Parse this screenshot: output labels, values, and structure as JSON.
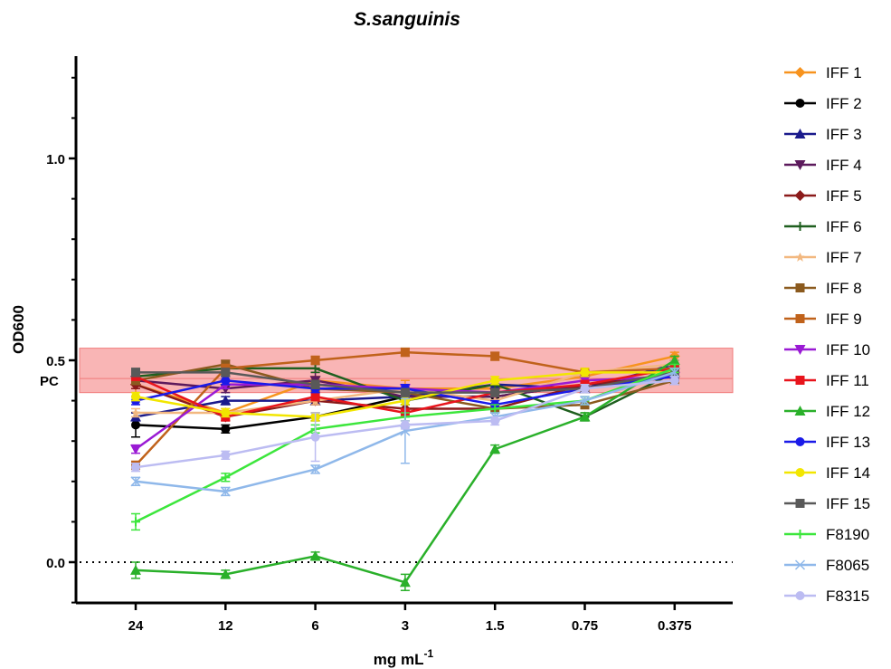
{
  "chart_data": {
    "type": "line",
    "title": "S.sanguinis",
    "xlabel": "mg mL",
    "xlabel_sup": "-1",
    "ylabel": "OD600",
    "ylim": [
      -0.1,
      1.25
    ],
    "yticks": [
      0.0,
      0.5,
      1.0
    ],
    "ytick_labels": [
      "0.0",
      "0.5",
      "1.0"
    ],
    "pc_label": "PC",
    "pc_band": {
      "low": 0.42,
      "high": 0.53,
      "line": 0.455,
      "color": "#f8a8a8"
    },
    "zero_line": {
      "y": 0.0,
      "style": "dotted"
    },
    "categories": [
      "24",
      "12",
      "6",
      "3",
      "1.5",
      "0.75",
      "0.375"
    ],
    "legend_position": "right",
    "series": [
      {
        "name": "IFF 1",
        "color": "#f7931e",
        "marker": "diamond",
        "values": [
          0.44,
          0.37,
          0.45,
          0.43,
          0.43,
          0.46,
          0.51
        ],
        "errors": [
          0.02,
          0.01,
          0.01,
          0.02,
          0.01,
          0.01,
          0.01
        ]
      },
      {
        "name": "IFF 2",
        "color": "#000000",
        "marker": "circle",
        "values": [
          0.34,
          0.33,
          0.36,
          0.41,
          0.41,
          0.44,
          0.46
        ],
        "errors": [
          0.03,
          0.01,
          0.01,
          0.01,
          0.01,
          0.01,
          0.01
        ]
      },
      {
        "name": "IFF 3",
        "color": "#1a1a8c",
        "marker": "triangle",
        "values": [
          0.36,
          0.4,
          0.4,
          0.41,
          0.44,
          0.43,
          0.49
        ],
        "errors": [
          0.01,
          0.01,
          0.01,
          0.01,
          0.01,
          0.01,
          0.01
        ]
      },
      {
        "name": "IFF 4",
        "color": "#5c1a5c",
        "marker": "tri-down",
        "values": [
          0.45,
          0.43,
          0.45,
          0.41,
          0.41,
          0.44,
          0.46
        ],
        "errors": [
          0.01,
          0.01,
          0.02,
          0.01,
          0.01,
          0.01,
          0.01
        ]
      },
      {
        "name": "IFF 5",
        "color": "#8b1a1a",
        "marker": "diamond",
        "values": [
          0.44,
          0.36,
          0.4,
          0.38,
          0.38,
          0.44,
          0.46
        ],
        "errors": [
          0.01,
          0.01,
          0.01,
          0.01,
          0.01,
          0.01,
          0.01
        ]
      },
      {
        "name": "IFF 6",
        "color": "#1f5f1f",
        "marker": "plus",
        "values": [
          0.46,
          0.48,
          0.48,
          0.4,
          0.44,
          0.36,
          0.47
        ],
        "errors": [
          0.01,
          0.01,
          0.01,
          0.01,
          0.01,
          0.01,
          0.01
        ]
      },
      {
        "name": "IFF 7",
        "color": "#f2b880",
        "marker": "star",
        "values": [
          0.37,
          0.37,
          0.4,
          0.43,
          0.4,
          0.47,
          0.49
        ],
        "errors": [
          0.01,
          0.01,
          0.01,
          0.01,
          0.01,
          0.01,
          0.01
        ]
      },
      {
        "name": "IFF 8",
        "color": "#8b5a1e",
        "marker": "square",
        "values": [
          0.45,
          0.49,
          0.43,
          0.42,
          0.38,
          0.39,
          0.45
        ],
        "errors": [
          0.01,
          0.01,
          0.01,
          0.01,
          0.01,
          0.01,
          0.01
        ]
      },
      {
        "name": "IFF 9",
        "color": "#c0621b",
        "marker": "square",
        "values": [
          0.24,
          0.48,
          0.5,
          0.52,
          0.51,
          0.47,
          0.48
        ],
        "errors": [
          0.01,
          0.01,
          0.01,
          0.01,
          0.01,
          0.01,
          0.01
        ]
      },
      {
        "name": "IFF 10",
        "color": "#9a1ad4",
        "marker": "tri-down",
        "values": [
          0.28,
          0.44,
          0.44,
          0.43,
          0.42,
          0.45,
          0.46
        ],
        "errors": [
          0.01,
          0.01,
          0.01,
          0.01,
          0.01,
          0.01,
          0.01
        ]
      },
      {
        "name": "IFF 11",
        "color": "#e8141c",
        "marker": "square",
        "values": [
          0.46,
          0.36,
          0.41,
          0.37,
          0.42,
          0.44,
          0.48
        ],
        "errors": [
          0.01,
          0.01,
          0.01,
          0.01,
          0.01,
          0.01,
          0.01
        ]
      },
      {
        "name": "IFF 12",
        "color": "#2ab02a",
        "marker": "triangle",
        "values": [
          -0.02,
          -0.03,
          0.015,
          -0.05,
          0.28,
          0.36,
          0.5
        ],
        "errors": [
          0.02,
          0.01,
          0.01,
          0.02,
          0.01,
          0.01,
          0.01
        ]
      },
      {
        "name": "IFF 13",
        "color": "#1a1ae8",
        "marker": "circle",
        "values": [
          0.4,
          0.45,
          0.43,
          0.43,
          0.39,
          0.43,
          0.46
        ],
        "errors": [
          0.01,
          0.01,
          0.01,
          0.01,
          0.01,
          0.01,
          0.01
        ]
      },
      {
        "name": "IFF 14",
        "color": "#f2e600",
        "marker": "circle",
        "values": [
          0.41,
          0.37,
          0.36,
          0.4,
          0.45,
          0.47,
          0.47
        ],
        "errors": [
          0.01,
          0.01,
          0.01,
          0.01,
          0.01,
          0.01,
          0.01
        ]
      },
      {
        "name": "IFF 15",
        "color": "#595959",
        "marker": "square",
        "values": [
          0.47,
          0.47,
          0.44,
          0.42,
          0.42,
          0.43,
          0.47
        ],
        "errors": [
          0.01,
          0.01,
          0.01,
          0.01,
          0.01,
          0.01,
          0.01
        ]
      },
      {
        "name": "F8190",
        "color": "#3ce63c",
        "marker": "plus",
        "values": [
          0.1,
          0.21,
          0.33,
          0.36,
          0.38,
          0.4,
          0.48
        ],
        "errors": [
          0.02,
          0.01,
          0.01,
          0.01,
          0.01,
          0.01,
          0.01
        ]
      },
      {
        "name": "F8065",
        "color": "#8fb8ea",
        "marker": "x",
        "values": [
          0.2,
          0.175,
          0.23,
          0.325,
          0.36,
          0.4,
          0.47
        ],
        "errors": [
          0.01,
          0.01,
          0.01,
          0.08,
          0.01,
          0.01,
          0.01
        ]
      },
      {
        "name": "F8315",
        "color": "#bcbcf2",
        "marker": "circle",
        "values": [
          0.235,
          0.265,
          0.31,
          0.34,
          0.35,
          0.43,
          0.45
        ],
        "errors": [
          0.01,
          0.01,
          0.06,
          0.01,
          0.01,
          0.01,
          0.01
        ]
      }
    ]
  }
}
